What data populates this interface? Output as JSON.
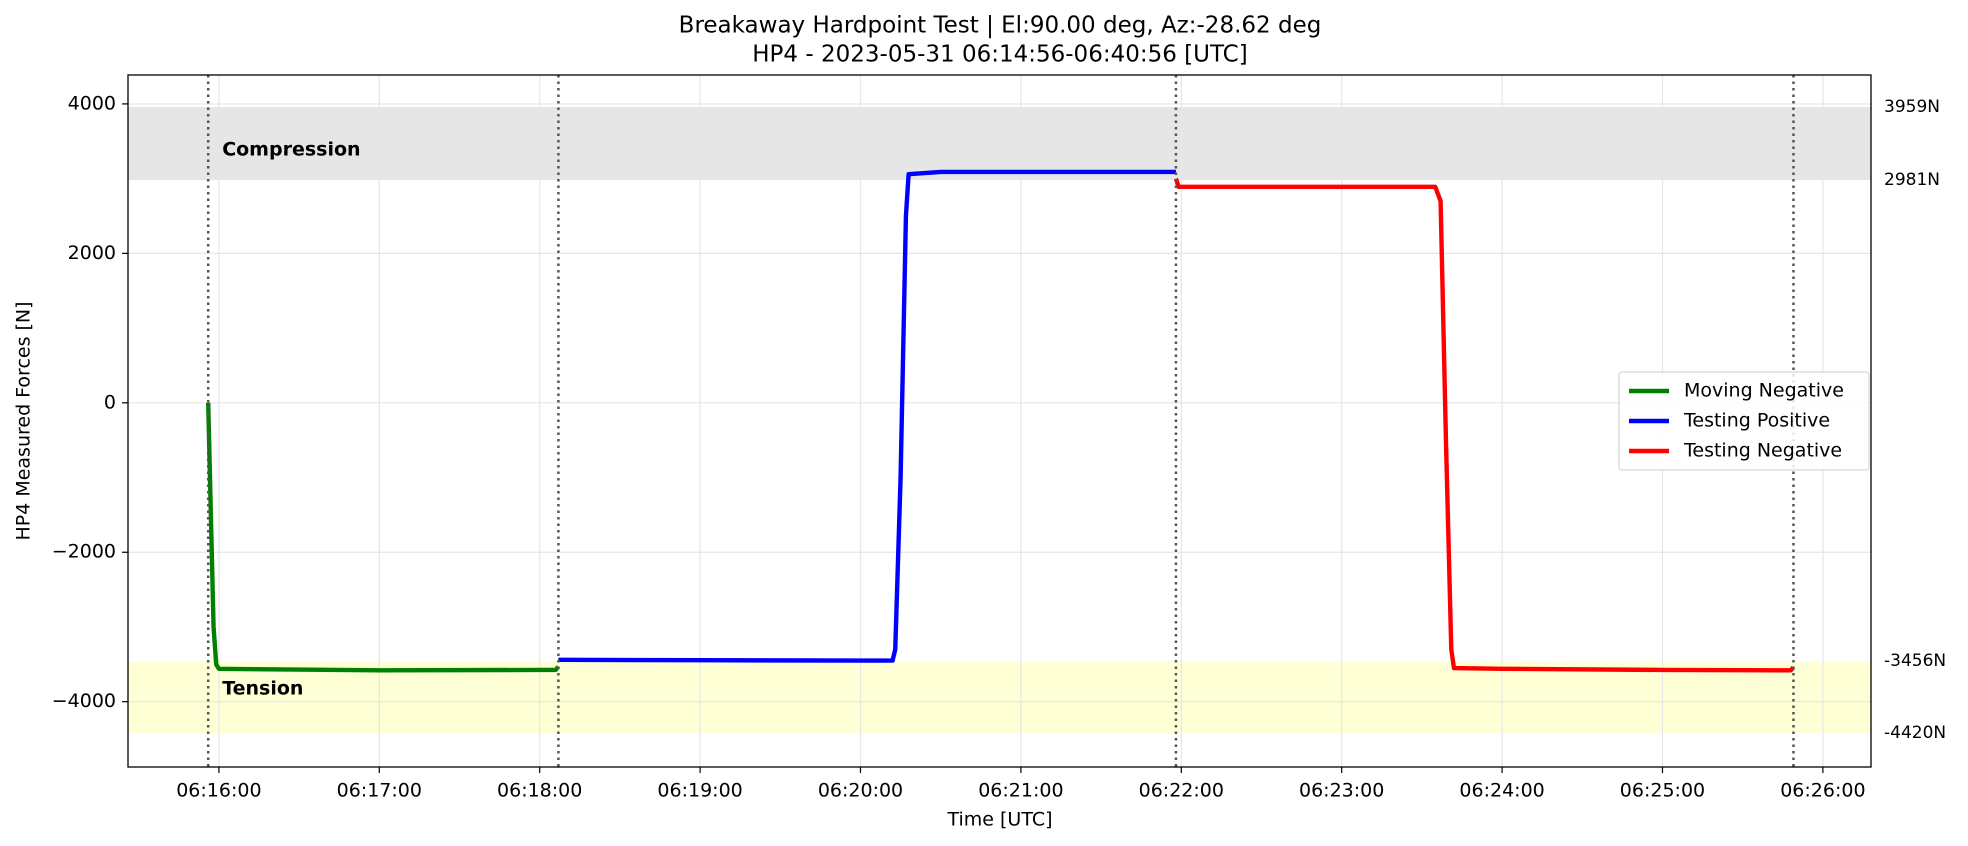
{
  "chart_data": {
    "type": "line",
    "title": "Breakaway Hardpoint Test | El:90.00 deg, Az:-28.62 deg",
    "subtitle": "HP4 - 2023-05-31 06:14:56-06:40:56 [UTC]",
    "xlabel": "Time [UTC]",
    "ylabel": "HP4 Measured Forces [N]",
    "xlim": [
      "06:15:26",
      "06:26:18"
    ],
    "xticks": [
      "06:16:00",
      "06:17:00",
      "06:18:00",
      "06:19:00",
      "06:20:00",
      "06:21:00",
      "06:22:00",
      "06:23:00",
      "06:24:00",
      "06:25:00",
      "06:26:00"
    ],
    "ylim": [
      -4874,
      4387
    ],
    "yticks": [
      {
        "value": -4000,
        "label": "−4000"
      },
      {
        "value": -2000,
        "label": "−2000"
      },
      0,
      2000,
      4000
    ],
    "grid": true,
    "legend": "center right",
    "vlines": [
      "06:15:56",
      "06:18:07",
      "06:21:58",
      "06:25:49"
    ],
    "bands": [
      {
        "name": "Compression",
        "range": [
          2981,
          3959
        ],
        "range_labels": [
          "2981N",
          "3959N"
        ],
        "color": "#e6e6e6"
      },
      {
        "name": "Tension",
        "range": [
          -4420,
          -3456
        ],
        "range_labels": [
          "-4420N",
          "-3456N"
        ],
        "color": "#ffffd6"
      }
    ],
    "series": [
      {
        "name": "Moving Negative",
        "color": "#008000",
        "x": [
          "06:15:56",
          "06:15:57",
          "06:15:58",
          "06:15:59",
          "06:16:00",
          "06:17:00",
          "06:18:00",
          "06:18:06",
          "06:18:07"
        ],
        "values": [
          0,
          -1500,
          -3000,
          -3500,
          -3560,
          -3580,
          -3575,
          -3575,
          -3530
        ]
      },
      {
        "name": "Testing Positive",
        "color": "#0000ff",
        "x": [
          "06:18:07",
          "06:19:00",
          "06:20:00",
          "06:20:12",
          "06:20:13",
          "06:20:15",
          "06:20:17",
          "06:20:18",
          "06:20:30",
          "06:21:00",
          "06:21:58"
        ],
        "values": [
          -3440,
          -3445,
          -3450,
          -3450,
          -3300,
          -1000,
          2500,
          3060,
          3090,
          3090,
          3090
        ]
      },
      {
        "name": "Testing Negative",
        "color": "#ff0000",
        "x": [
          "06:21:58",
          "06:21:59",
          "06:22:30",
          "06:23:00",
          "06:23:35",
          "06:23:37",
          "06:23:39",
          "06:23:41",
          "06:23:42",
          "06:24:00",
          "06:25:00",
          "06:25:48",
          "06:25:49"
        ],
        "values": [
          3000,
          2890,
          2890,
          2890,
          2890,
          2700,
          -500,
          -3300,
          -3550,
          -3560,
          -3575,
          -3580,
          -3540
        ]
      }
    ]
  }
}
